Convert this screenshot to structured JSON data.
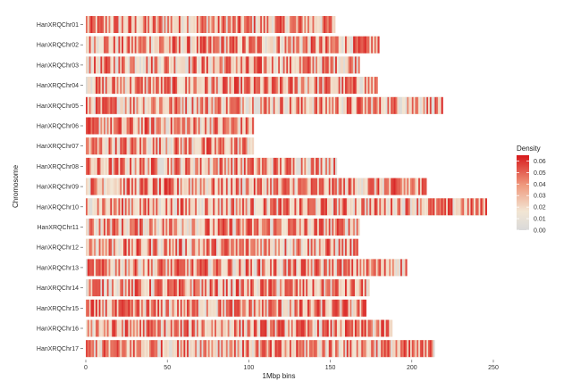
{
  "chart_data": {
    "type": "heatmap",
    "xlabel": "1Mbp bins",
    "ylabel": "Chromosome",
    "xlim": [
      0,
      250
    ],
    "x_ticks": [
      "0",
      "50",
      "100",
      "150",
      "200",
      "250"
    ],
    "x_tick_values": [
      0,
      50,
      100,
      150,
      200,
      250
    ],
    "chromosomes": [
      {
        "name": "HanXRQChr01",
        "length": 153
      },
      {
        "name": "HanXRQChr02",
        "length": 180
      },
      {
        "name": "HanXRQChr03",
        "length": 168
      },
      {
        "name": "HanXRQChr04",
        "length": 179
      },
      {
        "name": "HanXRQChr05",
        "length": 219
      },
      {
        "name": "HanXRQChr06",
        "length": 103
      },
      {
        "name": "HanXRQChr07",
        "length": 103
      },
      {
        "name": "HanXRQChr08",
        "length": 154
      },
      {
        "name": "HanXRQChr09",
        "length": 209
      },
      {
        "name": "HanXRQChr10",
        "length": 246
      },
      {
        "name": "HanXRQChr11",
        "length": 168
      },
      {
        "name": "HanXRQChr12",
        "length": 167
      },
      {
        "name": "HanXRQChr13",
        "length": 197
      },
      {
        "name": "HanXRQChr14",
        "length": 174
      },
      {
        "name": "HanXRQChr15",
        "length": 172
      },
      {
        "name": "HanXRQChr16",
        "length": 188
      },
      {
        "name": "HanXRQChr17",
        "length": 214
      }
    ],
    "legend": {
      "title": "Density",
      "placement": "right",
      "range": [
        0,
        0.065
      ],
      "ticks": [
        "0.06",
        "0.05",
        "0.04",
        "0.03",
        "0.02",
        "0.01",
        "0.00"
      ],
      "tick_values": [
        0.06,
        0.05,
        0.04,
        0.03,
        0.02,
        0.01,
        0.0
      ]
    },
    "color_scale": {
      "low": "#d9d9d9",
      "mid": "#f2e6d4",
      "high": "#d7191c"
    }
  }
}
